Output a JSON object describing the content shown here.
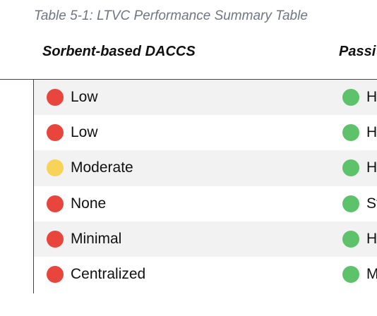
{
  "caption": "Table 5-1: LTVC Performance Summary Table",
  "columns": {
    "first": "Sorbent-based DACCS",
    "second": "Passi"
  },
  "rows": [
    {
      "a_text": "Low",
      "a_color": "#e8453c",
      "b_text": "H",
      "b_color": "#5ec26a"
    },
    {
      "a_text": "Low",
      "a_color": "#e8453c",
      "b_text": "H",
      "b_color": "#5ec26a"
    },
    {
      "a_text": "Moderate",
      "a_color": "#f7d358",
      "b_text": "H",
      "b_color": "#5ec26a"
    },
    {
      "a_text": "None",
      "a_color": "#e8453c",
      "b_text": "St",
      "b_color": "#5ec26a"
    },
    {
      "a_text": "Minimal",
      "a_color": "#e8453c",
      "b_text": "H",
      "b_color": "#5ec26a"
    },
    {
      "a_text": "Centralized",
      "a_color": "#e8453c",
      "b_text": "M",
      "b_color": "#5ec26a"
    }
  ]
}
